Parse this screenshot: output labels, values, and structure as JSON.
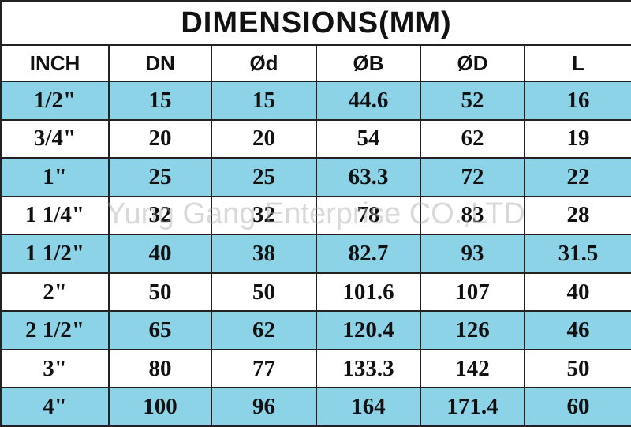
{
  "table": {
    "title": "DIMENSIONS(MM)",
    "header": [
      "INCH",
      "DN",
      "Ød",
      "ØB",
      "ØD",
      "L"
    ],
    "rows": [
      [
        "1/2\"",
        "15",
        "15",
        "44.6",
        "52",
        "16"
      ],
      [
        "3/4\"",
        "20",
        "20",
        "54",
        "62",
        "19"
      ],
      [
        "1\"",
        "25",
        "25",
        "63.3",
        "72",
        "22"
      ],
      [
        "1 1/4\"",
        "32",
        "32",
        "78",
        "83",
        "28"
      ],
      [
        "1 1/2\"",
        "40",
        "38",
        "82.7",
        "93",
        "31.5"
      ],
      [
        "2\"",
        "50",
        "50",
        "101.6",
        "107",
        "40"
      ],
      [
        "2 1/2\"",
        "65",
        "62",
        "120.4",
        "126",
        "46"
      ],
      [
        "3\"",
        "80",
        "77",
        "133.3",
        "142",
        "50"
      ],
      [
        "4\"",
        "100",
        "96",
        "164",
        "171.4",
        "60"
      ]
    ]
  },
  "watermark": "Yung Gang Enterprise CO.,LTD"
}
